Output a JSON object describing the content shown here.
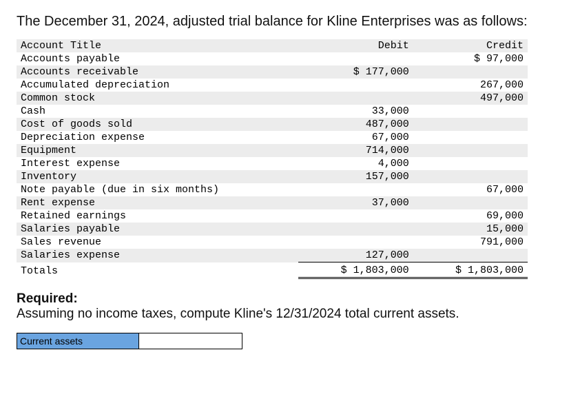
{
  "intro": "The December 31, 2024, adjusted trial balance for Kline Enterprises was as follows:",
  "headers": {
    "acct": "Account Title",
    "debit": "Debit",
    "credit": "Credit"
  },
  "rows": [
    {
      "acct": "Accounts payable",
      "debit": "",
      "credit": "$ 97,000",
      "stripe": false
    },
    {
      "acct": "Accounts receivable",
      "debit": "$ 177,000",
      "credit": "",
      "stripe": true
    },
    {
      "acct": "Accumulated depreciation",
      "debit": "",
      "credit": "267,000",
      "stripe": false
    },
    {
      "acct": "Common stock",
      "debit": "",
      "credit": "497,000",
      "stripe": true
    },
    {
      "acct": "Cash",
      "debit": "33,000",
      "credit": "",
      "stripe": false
    },
    {
      "acct": "Cost of goods sold",
      "debit": "487,000",
      "credit": "",
      "stripe": true
    },
    {
      "acct": "Depreciation expense",
      "debit": "67,000",
      "credit": "",
      "stripe": false
    },
    {
      "acct": "Equipment",
      "debit": "714,000",
      "credit": "",
      "stripe": true
    },
    {
      "acct": "Interest expense",
      "debit": "4,000",
      "credit": "",
      "stripe": false
    },
    {
      "acct": "Inventory",
      "debit": "157,000",
      "credit": "",
      "stripe": true
    },
    {
      "acct": "Note payable (due in six months)",
      "debit": "",
      "credit": "67,000",
      "stripe": false
    },
    {
      "acct": "Rent expense",
      "debit": "37,000",
      "credit": "",
      "stripe": true
    },
    {
      "acct": "Retained earnings",
      "debit": "",
      "credit": "69,000",
      "stripe": false
    },
    {
      "acct": "Salaries payable",
      "debit": "",
      "credit": "15,000",
      "stripe": true
    },
    {
      "acct": "Sales revenue",
      "debit": "",
      "credit": "791,000",
      "stripe": false
    },
    {
      "acct": "Salaries expense",
      "debit": "127,000",
      "credit": "",
      "stripe": true
    }
  ],
  "totals": {
    "label": "Totals",
    "debit": "$ 1,803,000",
    "credit": "$ 1,803,000"
  },
  "required": {
    "heading": "Required:",
    "text": "Assuming no income taxes, compute Kline's 12/31/2024 total current assets."
  },
  "answer": {
    "label": "Current assets",
    "value": ""
  },
  "style": {
    "stripe_color": "#ececec",
    "label_bg": "#6aa4e0"
  }
}
